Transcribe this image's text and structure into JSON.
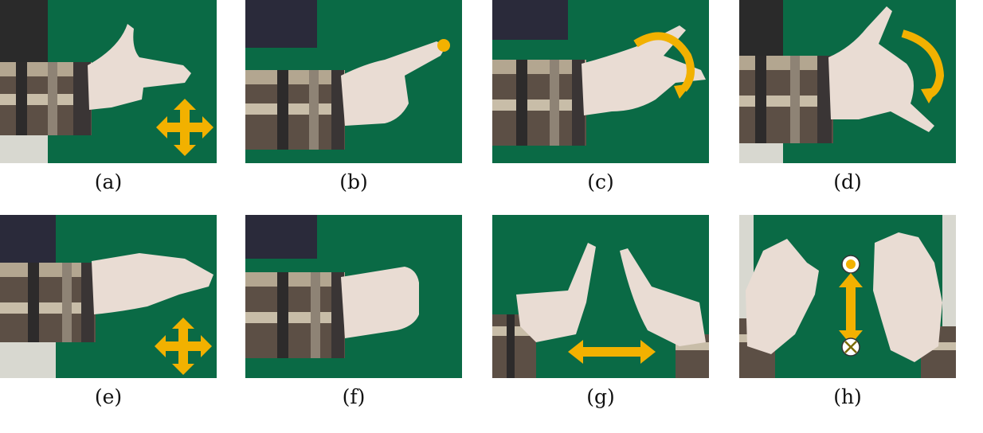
{
  "figure": {
    "panels": [
      {
        "caption": "(a)",
        "gesture_icon": "four-way-arrow-icon"
      },
      {
        "caption": "(b)",
        "gesture_icon": "dot-icon"
      },
      {
        "caption": "(c)",
        "gesture_icon": "rotate-arrow-icon"
      },
      {
        "caption": "(d)",
        "gesture_icon": "rotate-arrow-icon"
      },
      {
        "caption": "(e)",
        "gesture_icon": "four-way-arrow-icon"
      },
      {
        "caption": "(f)",
        "gesture_icon": "none"
      },
      {
        "caption": "(g)",
        "gesture_icon": "horizontal-double-arrow-icon"
      },
      {
        "caption": "(h)",
        "gesture_icon": "vertical-double-arrow-icon"
      }
    ],
    "colors": {
      "background_cloth": "#0a6a45",
      "glove": "#e9dcd3",
      "arrow": "#f2b100",
      "sleeve_dark": "#3b3b3b",
      "sleeve_light": "#c9b9a4"
    }
  }
}
